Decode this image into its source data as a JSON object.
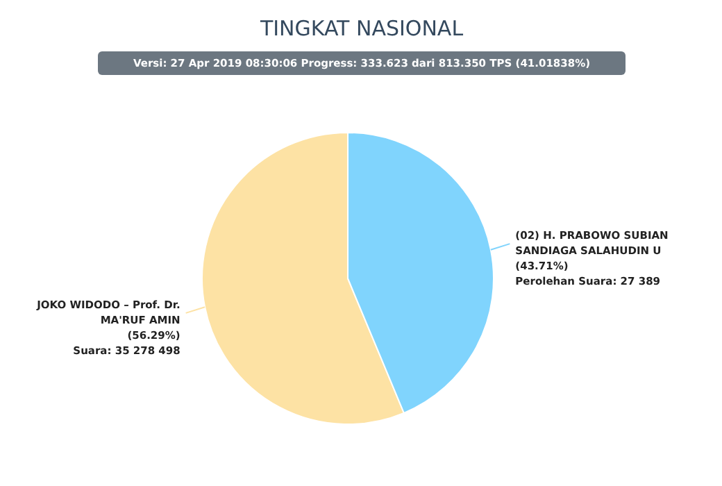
{
  "chart_data": {
    "type": "pie",
    "title": "TINGKAT NASIONAL",
    "subtitle": "Versi: 27 Apr 2019 08:30:06 Progress: 333.623 dari 813.350 TPS (41.01838%)",
    "categories": [
      "JOKO WIDODO – Prof. Dr. MA'RUF AMIN",
      "(02) H. PRABOWO SUBIAN SANDIAGA SALAHUDIN U"
    ],
    "values": [
      56.29,
      43.71
    ],
    "value_labels": [
      "(56.29%)",
      "(43.71%)"
    ],
    "colors": [
      "#fde2a4",
      "#80d4fd"
    ],
    "annotations": [
      "Suara: 35 278 498",
      "Perolehan Suara: 27 389"
    ]
  }
}
